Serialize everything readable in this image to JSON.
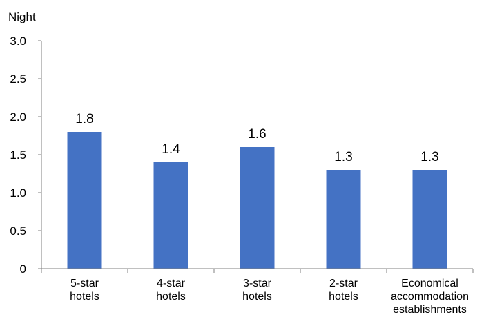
{
  "chart_data": {
    "type": "bar",
    "title": "",
    "ylabel": "Night",
    "xlabel": "",
    "ylim": [
      0,
      3.0
    ],
    "yticks": [
      "0",
      "0.5",
      "1.0",
      "1.5",
      "2.0",
      "2.5",
      "3.0"
    ],
    "categories": [
      [
        "5-star",
        "hotels"
      ],
      [
        "4-star",
        "hotels"
      ],
      [
        "3-star",
        "hotels"
      ],
      [
        "2-star",
        "hotels"
      ],
      [
        "Economical",
        "accommodation",
        "establishments"
      ]
    ],
    "values": [
      1.8,
      1.4,
      1.6,
      1.3,
      1.3
    ],
    "data_labels": [
      "1.8",
      "1.4",
      "1.6",
      "1.3",
      "1.3"
    ],
    "bar_color": "#4472C4",
    "grid": false,
    "legend": "none"
  }
}
